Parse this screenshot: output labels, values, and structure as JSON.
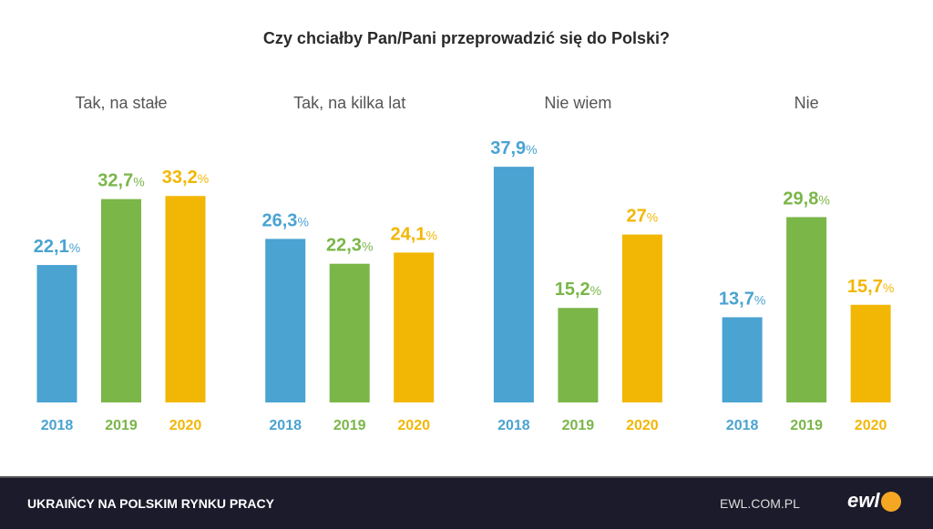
{
  "chart_data": {
    "type": "bar",
    "title": "Czy chciałby Pan/Pani przeprowadzić się do Polski?",
    "groups": [
      "Tak, na stałe",
      "Tak, na kilka lat",
      "Nie wiem",
      "Nie"
    ],
    "series": [
      {
        "name": "2018",
        "color": "#4aa3d1",
        "values": [
          22.1,
          26.3,
          37.9,
          13.7
        ],
        "labels": [
          "22,1",
          "26,3",
          "37,9",
          "13,7"
        ]
      },
      {
        "name": "2019",
        "color": "#7ab648",
        "values": [
          32.7,
          22.3,
          15.2,
          29.8
        ],
        "labels": [
          "32,7",
          "22,3",
          "15,2",
          "29,8"
        ]
      },
      {
        "name": "2020",
        "color": "#f2b705",
        "values": [
          33.2,
          24.1,
          27,
          15.7
        ],
        "labels": [
          "33,2",
          "24,1",
          "27",
          "15,7"
        ]
      }
    ],
    "unit": "%",
    "ylim": [
      0,
      40
    ],
    "grid": false
  },
  "footer": {
    "left": "UKRAIŃCY NA POLSKIM RYNKU PRACY",
    "url": "EWL.COM.PL",
    "logo": "ewl"
  }
}
